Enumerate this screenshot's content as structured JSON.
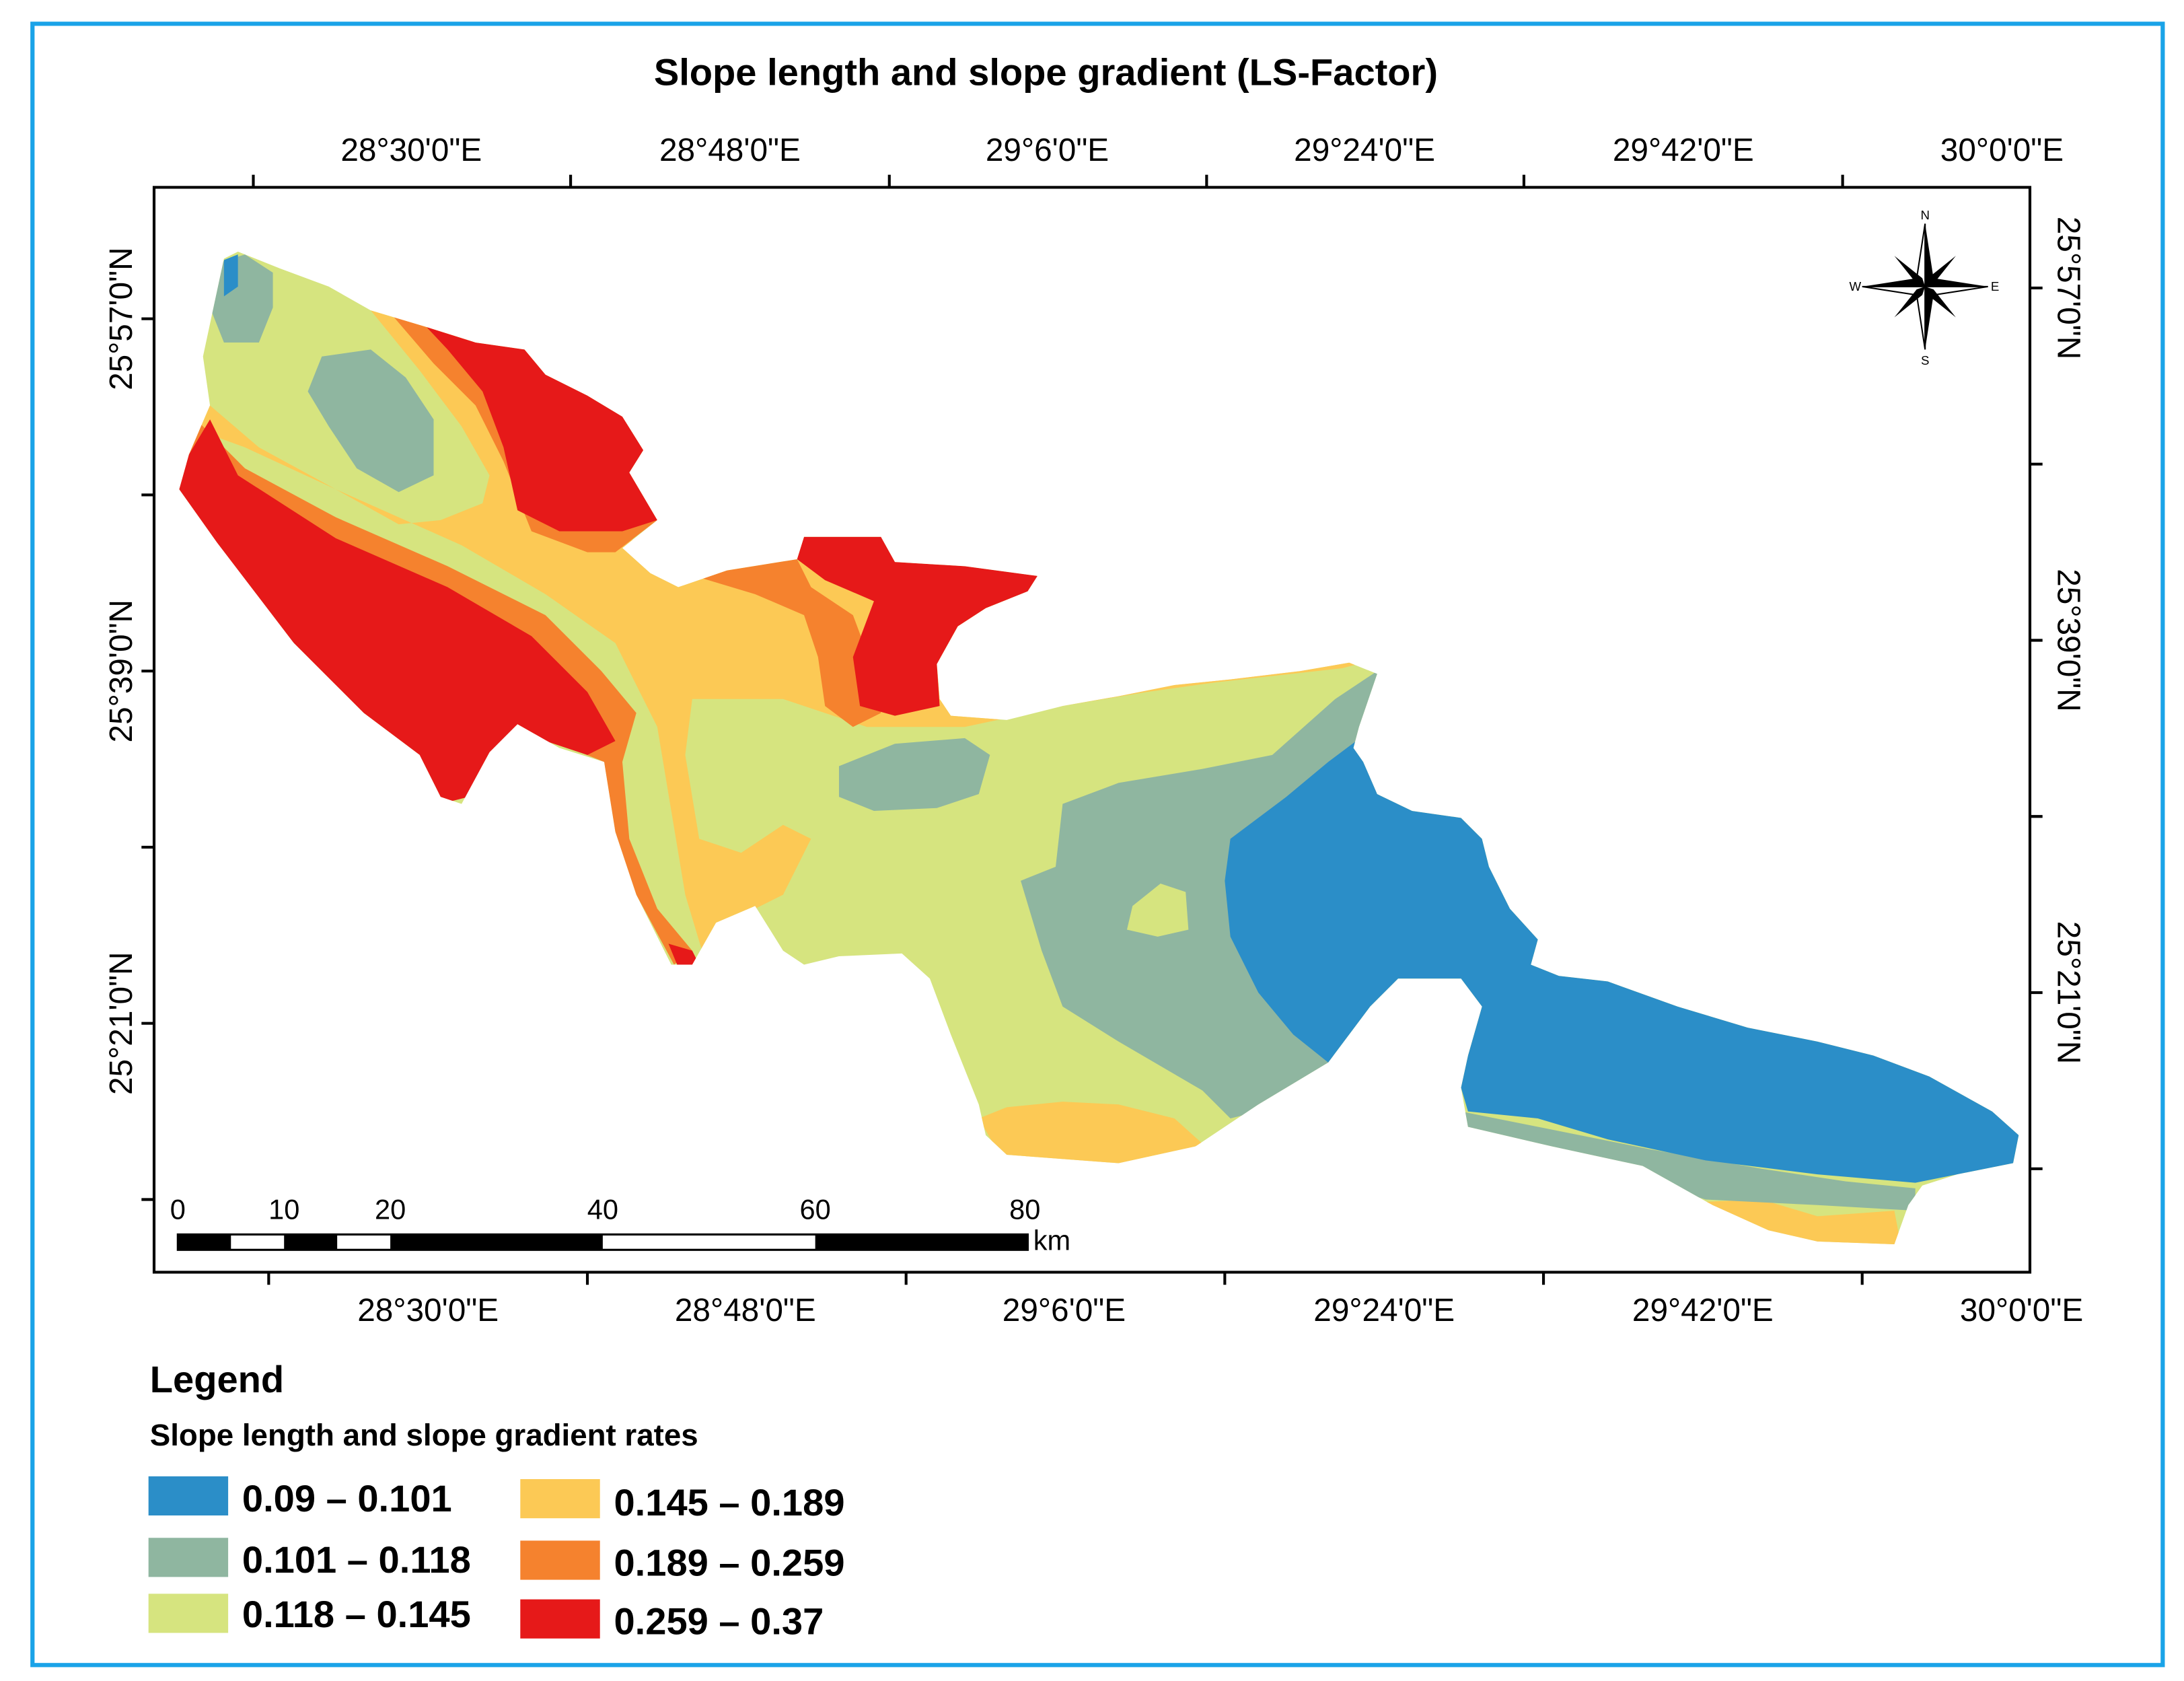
{
  "title": "Slope length and slope gradient (LS-Factor)",
  "colors": {
    "frame": "#1aa3e8",
    "class1": "#2b8ec8",
    "class2": "#8fb6a0",
    "class3": "#d6e47f",
    "class4": "#fcc955",
    "class5": "#f5822e",
    "class6": "#e61919"
  },
  "axes": {
    "top_labels": [
      "28°30'0\"E",
      "28°48'0\"E",
      "29°6'0\"E",
      "29°24'0\"E",
      "29°42'0\"E",
      "30°0'0\"E"
    ],
    "bottom_labels": [
      "28°30'0\"E",
      "28°48'0\"E",
      "29°6'0\"E",
      "29°24'0\"E",
      "29°42'0\"E",
      "30°0'0\"E"
    ],
    "left_labels": [
      "25°57'0\"N",
      "25°39'0\"N",
      "25°21'0\"N"
    ],
    "right_labels": [
      "25°57'0\"N",
      "25°39'0\"N",
      "25°21'0\"N"
    ]
  },
  "north_arrow": {
    "n": "N",
    "s": "S",
    "e": "E",
    "w": "W"
  },
  "scale_bar": {
    "ticks": [
      "0",
      "10",
      "20",
      "40",
      "60",
      "80"
    ],
    "unit": "km"
  },
  "legend": {
    "heading": "Legend",
    "subtitle": "Slope length and slope gradient rates",
    "items": [
      {
        "label": "0.09 – 0.101",
        "color": "#2b8ec8"
      },
      {
        "label": "0.101 – 0.118",
        "color": "#8fb6a0"
      },
      {
        "label": "0.118 – 0.145",
        "color": "#d6e47f"
      },
      {
        "label": "0.145 – 0.189",
        "color": "#fcc955"
      },
      {
        "label": "0.189 – 0.259",
        "color": "#f5822e"
      },
      {
        "label": "0.259 – 0.37",
        "color": "#e61919"
      }
    ]
  }
}
